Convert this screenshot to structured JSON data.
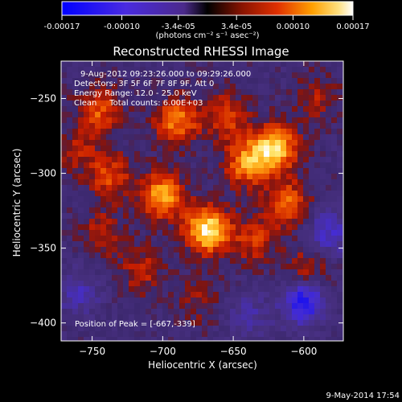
{
  "chart_data": {
    "type": "heatmap",
    "title": "Reconstructed RHESSI Image",
    "xlabel": "Heliocentric X (arcsec)",
    "ylabel": "Heliocentric Y (arcsec)",
    "xlim": [
      -772,
      -572
    ],
    "ylim": [
      -412,
      -225
    ],
    "xticks": [
      -750,
      -700,
      -650,
      -600
    ],
    "yticks": [
      -250,
      -300,
      -350,
      -400
    ],
    "colorbar": {
      "range": [
        -0.00017,
        0.00017
      ],
      "tick_values": [
        -0.00017,
        -0.0001,
        -3.4e-05,
        3.4e-05,
        0.0001,
        0.00017
      ],
      "tick_labels": [
        "-0.00017",
        "-0.00010",
        "-3.4e-05",
        "3.4e-05",
        "0.00010",
        "0.00017"
      ],
      "unit_label": "(photons cm⁻² s⁻¹ asec⁻²)"
    },
    "annotations": [
      "9-Aug-2012 09:23:26.000 to 09:29:26.000",
      "Detectors: 3F 5F 6F 7F 8F 9F, Att 0",
      "Energy Range: 12.0 - 25.0 keV",
      "Clean     Total counts: 6.00E+03"
    ],
    "peak_label": "Position of Peak = [-667,-339]",
    "peak": {
      "x": -667,
      "y": -339
    },
    "bright_regions": [
      {
        "x": -700,
        "y": -315,
        "value": 0.00013
      },
      {
        "x": -668,
        "y": -338,
        "value": 0.00017
      },
      {
        "x": -640,
        "y": -293,
        "value": 0.00012
      },
      {
        "x": -620,
        "y": -283,
        "value": 0.00015
      },
      {
        "x": -612,
        "y": -320,
        "value": 0.0001
      },
      {
        "x": -690,
        "y": -265,
        "value": 0.00011
      },
      {
        "x": -745,
        "y": -258,
        "value": 9e-05
      },
      {
        "x": -737,
        "y": -302,
        "value": 8e-05
      },
      {
        "x": -655,
        "y": -262,
        "value": 8e-05
      },
      {
        "x": -743,
        "y": -340,
        "value": 6e-05
      },
      {
        "x": -598,
        "y": -365,
        "value": 7e-05
      },
      {
        "x": -715,
        "y": -365,
        "value": 6e-05
      },
      {
        "x": -635,
        "y": -345,
        "value": 7e-05
      },
      {
        "x": -760,
        "y": -285,
        "value": 5e-05
      },
      {
        "x": -590,
        "y": -250,
        "value": 5e-05
      },
      {
        "x": -673,
        "y": -385,
        "value": 4e-05
      }
    ],
    "dark_regions": [
      {
        "x": -600,
        "y": -385,
        "value": -0.00013
      },
      {
        "x": -582,
        "y": -340,
        "value": -8e-05
      },
      {
        "x": -760,
        "y": -380,
        "value": -6e-05
      },
      {
        "x": -640,
        "y": -395,
        "value": -5e-05
      }
    ]
  },
  "footer_date": "9-May-2014 17:54"
}
